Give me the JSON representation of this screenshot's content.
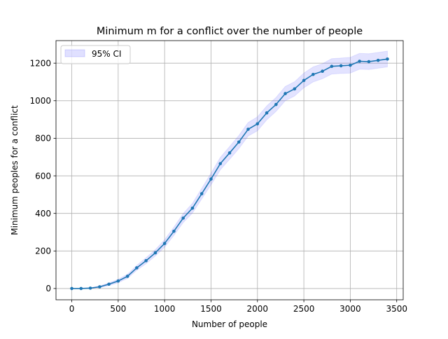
{
  "chart_data": {
    "type": "line",
    "title": "Minimum m for a conflict over the number of people",
    "xlabel": "Number of people",
    "ylabel": "Minimum peoples for a conflict",
    "xlim": [
      -170,
      3570
    ],
    "ylim": [
      -60,
      1320
    ],
    "xticks": [
      0,
      500,
      1000,
      1500,
      2000,
      2500,
      3000,
      3500
    ],
    "yticks": [
      0,
      200,
      400,
      600,
      800,
      1000,
      1200
    ],
    "xtick_labels": [
      "0",
      "500",
      "1000",
      "1500",
      "2000",
      "2500",
      "3000",
      "3500"
    ],
    "ytick_labels": [
      "0",
      "200",
      "400",
      "600",
      "800",
      "1000",
      "1200"
    ],
    "grid": true,
    "legend": {
      "placement": "top-left",
      "entries": [
        "95% CI"
      ]
    },
    "series": [
      {
        "color": "#1f77b4",
        "marker": "circle",
        "x": [
          0,
          100,
          200,
          300,
          400,
          500,
          600,
          700,
          800,
          900,
          1000,
          1100,
          1200,
          1300,
          1400,
          1500,
          1600,
          1700,
          1800,
          1900,
          2000,
          2100,
          2200,
          2300,
          2400,
          2500,
          2600,
          2700,
          2800,
          2900,
          3000,
          3100,
          3200,
          3300,
          3400
        ],
        "y": [
          0,
          0,
          2,
          9,
          23,
          40,
          65,
          110,
          148,
          190,
          240,
          305,
          375,
          428,
          505,
          583,
          665,
          722,
          780,
          848,
          877,
          935,
          980,
          1038,
          1063,
          1108,
          1140,
          1157,
          1183,
          1186,
          1189,
          1210,
          1208,
          1215,
          1222
        ]
      }
    ],
    "ci_band": {
      "label": "95% CI",
      "color": "#6666ff",
      "lower": [
        0,
        0,
        0,
        5,
        16,
        31,
        54,
        97,
        132,
        173,
        220,
        283,
        351,
        402,
        477,
        552,
        632,
        688,
        745,
        812,
        840,
        898,
        943,
        1000,
        1025,
        1069,
        1100,
        1117,
        1142,
        1145,
        1147,
        1168,
        1166,
        1173,
        1180
      ],
      "upper": [
        0,
        2,
        5,
        13,
        30,
        49,
        76,
        123,
        164,
        207,
        260,
        327,
        399,
        454,
        533,
        614,
        698,
        756,
        815,
        884,
        914,
        972,
        1017,
        1076,
        1101,
        1147,
        1180,
        1197,
        1224,
        1227,
        1231,
        1252,
        1250,
        1257,
        1264
      ]
    }
  }
}
